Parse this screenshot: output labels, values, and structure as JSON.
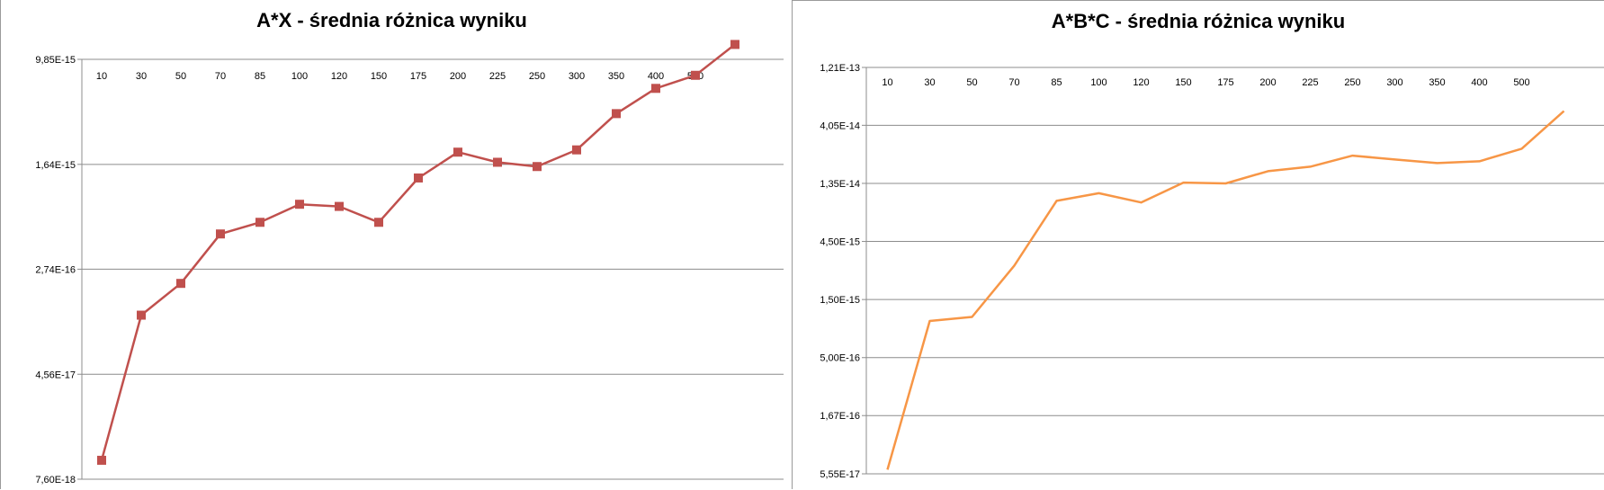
{
  "chart_data": [
    {
      "type": "line",
      "title": "A*X - średnia różnica wyniku",
      "xlabel": "",
      "ylabel": "",
      "categories": [
        "10",
        "30",
        "50",
        "70",
        "85",
        "100",
        "120",
        "150",
        "175",
        "200",
        "225",
        "250",
        "300",
        "350",
        "400",
        "500",
        ""
      ],
      "y_tick_labels": [
        "9,85E-15",
        "1,64E-15",
        "2,74E-16",
        "4,56E-17",
        "7,60E-18"
      ],
      "y_tick_values": [
        9.85e-15,
        1.64e-15,
        2.74e-16,
        4.56e-17,
        7.6e-18
      ],
      "scale": "log",
      "ylim": [
        7.6e-18,
        9.85e-15
      ],
      "grid": true,
      "legend": "none",
      "series": [
        {
          "color": "#c0504d",
          "marker": "square",
          "values": [
            1.05e-17,
            1.25e-16,
            2.15e-16,
            5e-16,
            6.1e-16,
            8.3e-16,
            8e-16,
            6.1e-16,
            1.3e-15,
            2.02e-15,
            1.7e-15,
            1.58e-15,
            2.1e-15,
            3.9e-15,
            6e-15,
            7.5e-15,
            1.27e-14
          ]
        }
      ]
    },
    {
      "type": "line",
      "title": "A*B*C - średnia różnica wyniku",
      "xlabel": "",
      "ylabel": "",
      "categories": [
        "10",
        "30",
        "50",
        "70",
        "85",
        "100",
        "120",
        "150",
        "175",
        "200",
        "225",
        "250",
        "300",
        "350",
        "400",
        "500",
        ""
      ],
      "y_tick_labels": [
        "1,21E-13",
        "4,05E-14",
        "1,35E-14",
        "4,50E-15",
        "1,50E-15",
        "5,00E-16",
        "1,67E-16",
        "5,55E-17"
      ],
      "y_tick_values": [
        1.21e-13,
        4.05e-14,
        1.35e-14,
        4.5e-15,
        1.5e-15,
        5e-16,
        1.67e-16,
        5.55e-17
      ],
      "scale": "log",
      "ylim": [
        5.55e-17,
        1.21e-13
      ],
      "grid": true,
      "legend": "none",
      "series": [
        {
          "color": "#f79646",
          "marker": "none",
          "values": [
            6e-17,
            1e-15,
            1.08e-15,
            2.85e-15,
            9.7e-15,
            1.12e-14,
            9.4e-15,
            1.37e-14,
            1.35e-14,
            1.7e-14,
            1.85e-14,
            2.28e-14,
            2.12e-14,
            1.98e-14,
            2.05e-14,
            2.6e-14,
            5.3e-14
          ]
        }
      ]
    }
  ]
}
